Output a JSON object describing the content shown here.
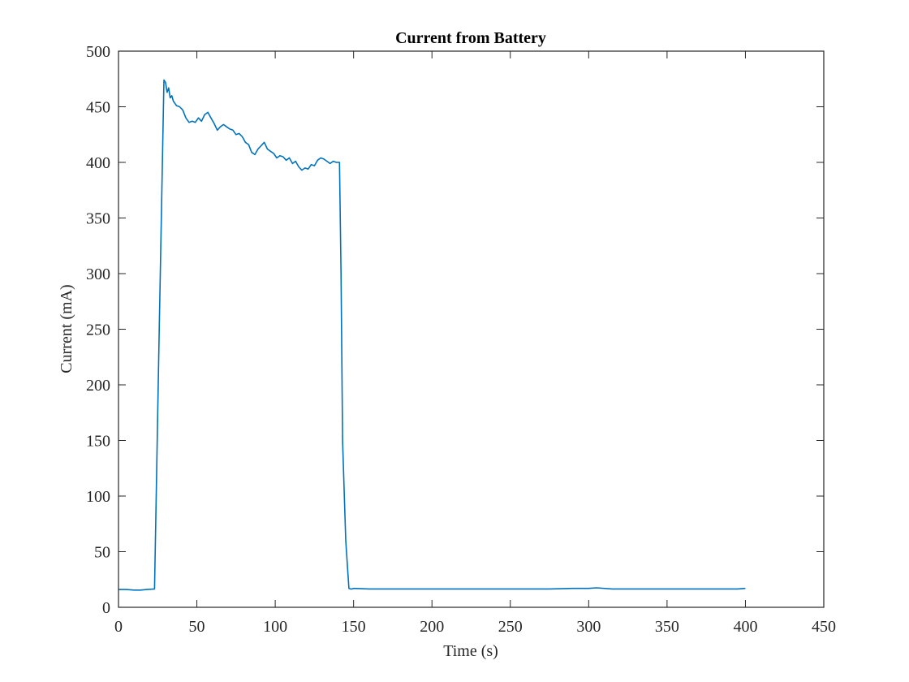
{
  "chart_data": {
    "type": "line",
    "title": "Current from Battery",
    "xlabel": "Time (s)",
    "ylabel": "Current (mA)",
    "xlim": [
      0,
      450
    ],
    "ylim": [
      0,
      500
    ],
    "xticks": [
      0,
      50,
      100,
      150,
      200,
      250,
      300,
      350,
      400,
      450
    ],
    "yticks": [
      0,
      50,
      100,
      150,
      200,
      250,
      300,
      350,
      400,
      450,
      500
    ],
    "grid": false,
    "line_color": "#0072BD",
    "series": [
      {
        "x": [
          0,
          5,
          10,
          14,
          18,
          23,
          26,
          29,
          30,
          31,
          32,
          33,
          34,
          35,
          37,
          39,
          41,
          43,
          45,
          47,
          49,
          51,
          53,
          55,
          57,
          59,
          61,
          63,
          65,
          67,
          69,
          71,
          73,
          75,
          77,
          79,
          81,
          83,
          85,
          87,
          89,
          91,
          93,
          95,
          97,
          99,
          101,
          103,
          105,
          107,
          109,
          111,
          113,
          115,
          117,
          119,
          121,
          123,
          125,
          127,
          129,
          131,
          133,
          135,
          137,
          139,
          141,
          142,
          143,
          145,
          147,
          148,
          149,
          150,
          160,
          175,
          200,
          225,
          250,
          275,
          290,
          300,
          305,
          315,
          335,
          355,
          375,
          395,
          400
        ],
        "y": [
          16,
          16,
          15.5,
          15.5,
          16,
          16.5,
          250,
          474,
          472,
          463,
          467,
          458,
          460,
          455,
          451,
          450,
          447,
          440,
          436,
          437,
          436,
          440,
          437,
          443,
          445,
          440,
          435,
          429,
          432,
          434,
          432,
          430,
          429,
          425,
          426,
          423,
          418,
          416,
          409,
          407,
          412,
          415,
          418,
          412,
          410,
          408,
          404,
          406,
          405,
          402,
          404,
          399,
          401,
          396,
          393,
          395,
          394,
          398,
          397,
          402,
          404,
          403,
          401,
          399,
          401,
          400,
          400,
          300,
          150,
          60,
          17,
          16.5,
          16.5,
          17,
          16.5,
          16.5,
          16.5,
          16.5,
          16.5,
          16.5,
          17,
          17,
          17.5,
          16.5,
          16.5,
          16.5,
          16.5,
          16.5,
          17
        ]
      }
    ]
  }
}
